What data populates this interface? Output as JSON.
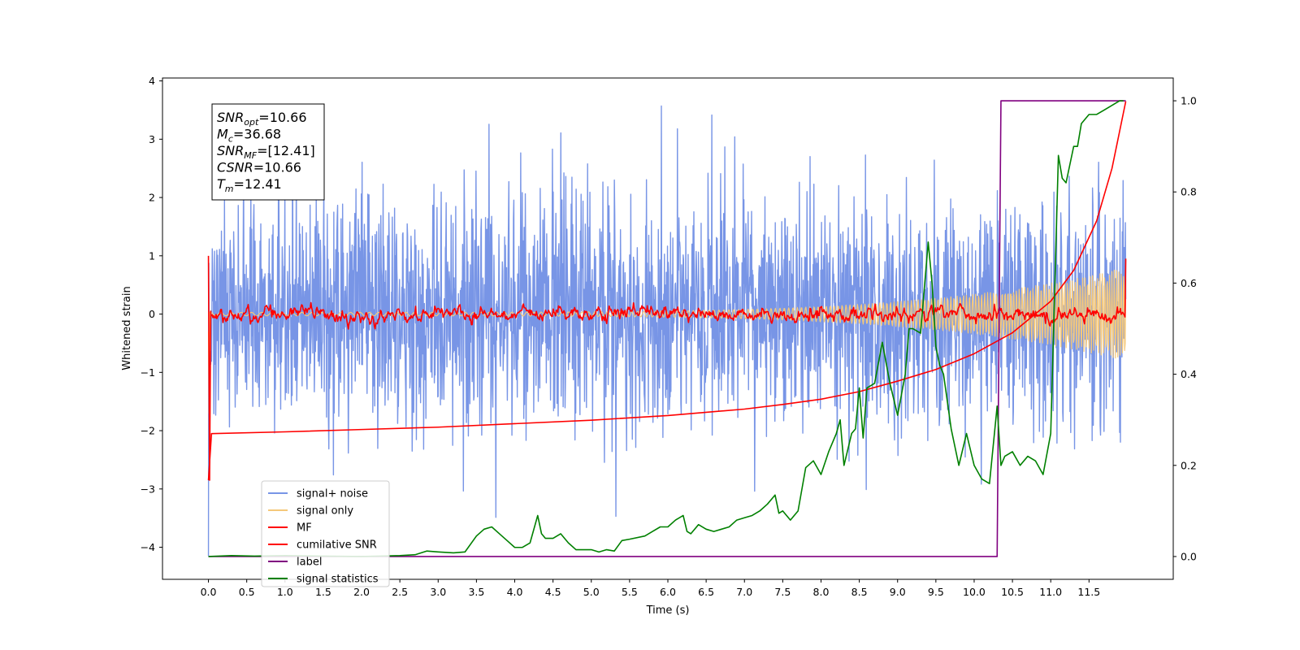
{
  "chart_data": {
    "type": "line",
    "xlabel": "Time (s)",
    "ylabel": "Whitened strain",
    "xlim": [
      -0.6,
      12.6
    ],
    "ylim": [
      -4.55,
      4.05
    ],
    "y2lim": [
      -0.05,
      1.05
    ],
    "x_ticks": [
      0.0,
      0.5,
      1.0,
      1.5,
      2.0,
      2.5,
      3.0,
      3.5,
      4.0,
      4.5,
      5.0,
      5.5,
      6.0,
      6.5,
      7.0,
      7.5,
      8.0,
      8.5,
      9.0,
      9.5,
      10.0,
      10.5,
      11.0,
      11.5
    ],
    "x_tick_labels": [
      "0.0",
      "0.5",
      "1.0",
      "1.5",
      "2.0",
      "2.5",
      "3.0",
      "3.5",
      "4.0",
      "4.5",
      "5.0",
      "5.5",
      "6.0",
      "6.5",
      "7.0",
      "7.5",
      "8.0",
      "8.5",
      "9.0",
      "9.5",
      "10.0",
      "10.5",
      "11.0",
      "11.5"
    ],
    "y_ticks": [
      -4,
      -3,
      -2,
      -1,
      0,
      1,
      2,
      3,
      4
    ],
    "y_tick_labels": [
      "−4",
      "−3",
      "−2",
      "−1",
      "0",
      "1",
      "2",
      "3",
      "4"
    ],
    "y2_ticks": [
      0.0,
      0.2,
      0.4,
      0.6,
      0.8,
      1.0
    ],
    "y2_tick_labels": [
      "0.0",
      "0.2",
      "0.4",
      "0.6",
      "0.8",
      "1.0"
    ],
    "legend_position": "lower-left",
    "grid": false,
    "annotation": {
      "lines": [
        {
          "sym": "SNR",
          "sub": "opt",
          "rest": "=10.66"
        },
        {
          "sym": "M",
          "sub": "c",
          "rest": "=36.68"
        },
        {
          "sym": "SNR",
          "sub": "MF",
          "rest": "=[12.41]"
        },
        {
          "sym": "CSNR",
          "sub": "",
          "rest": "=10.66"
        },
        {
          "sym": "T",
          "sub": "m",
          "rest": "=12.41"
        }
      ]
    },
    "series": [
      {
        "name": "signal+ noise",
        "color": "#7895e6",
        "axis": "left",
        "kind": "noise",
        "x_start": 0.0,
        "x_end": 11.98,
        "sigma": 1.0,
        "peak_max": 3.65,
        "peak_min": -4.15
      },
      {
        "name": "signal only",
        "color": "#f5c87a",
        "axis": "left",
        "kind": "chirp",
        "x_start": 0.0,
        "x_end": 11.98,
        "amplitude_start": 0.03,
        "amplitude_end": 0.8,
        "start_value": -0.3,
        "start_dip": -1.7
      },
      {
        "name": "MF",
        "color": "#ff0000",
        "axis": "left",
        "kind": "jitter",
        "x_start": 0.0,
        "x_end": 11.98,
        "start_values": [
          1.0,
          -2.85,
          0.05
        ],
        "sigma": 0.05,
        "end_values": [
          -0.05,
          0.95
        ]
      },
      {
        "name": "cumilative SNR",
        "color": "#ff0000",
        "axis": "left",
        "kind": "curve",
        "x": [
          0.0,
          0.04,
          1.0,
          2.0,
          3.0,
          4.0,
          5.0,
          6.0,
          7.0,
          7.5,
          8.0,
          8.5,
          9.0,
          9.5,
          10.0,
          10.5,
          11.0,
          11.3,
          11.6,
          11.8,
          11.98
        ],
        "y": [
          -2.85,
          -2.05,
          -2.02,
          -1.98,
          -1.94,
          -1.88,
          -1.82,
          -1.74,
          -1.63,
          -1.55,
          -1.46,
          -1.33,
          -1.15,
          -0.95,
          -0.68,
          -0.32,
          0.22,
          0.75,
          1.6,
          2.5,
          3.65
        ]
      },
      {
        "name": "label",
        "color": "#800080",
        "axis": "right",
        "kind": "steps",
        "x": [
          0.0,
          10.3,
          10.35,
          11.98
        ],
        "y": [
          0.0,
          0.0,
          1.0,
          1.0
        ]
      },
      {
        "name": "signal statistics",
        "color": "#008000",
        "axis": "right",
        "kind": "curve",
        "x": [
          0.0,
          0.3,
          0.6,
          1.0,
          1.5,
          2.0,
          2.5,
          2.7,
          2.85,
          3.0,
          3.2,
          3.35,
          3.5,
          3.6,
          3.7,
          3.8,
          3.9,
          4.0,
          4.1,
          4.2,
          4.3,
          4.35,
          4.4,
          4.5,
          4.6,
          4.7,
          4.8,
          4.9,
          5.0,
          5.1,
          5.2,
          5.3,
          5.4,
          5.5,
          5.7,
          5.8,
          5.9,
          6.0,
          6.1,
          6.2,
          6.25,
          6.3,
          6.4,
          6.5,
          6.6,
          6.7,
          6.8,
          6.9,
          7.0,
          7.1,
          7.2,
          7.3,
          7.4,
          7.45,
          7.5,
          7.6,
          7.7,
          7.8,
          7.9,
          8.0,
          8.1,
          8.2,
          8.25,
          8.3,
          8.4,
          8.45,
          8.5,
          8.55,
          8.6,
          8.7,
          8.8,
          8.9,
          9.0,
          9.1,
          9.15,
          9.2,
          9.3,
          9.4,
          9.45,
          9.5,
          9.55,
          9.6,
          9.7,
          9.8,
          9.9,
          10.0,
          10.1,
          10.2,
          10.3,
          10.35,
          10.4,
          10.5,
          10.6,
          10.7,
          10.8,
          10.9,
          11.0,
          11.1,
          11.15,
          11.2,
          11.3,
          11.35,
          11.4,
          11.5,
          11.6,
          11.7,
          11.8,
          11.9,
          11.95
        ],
        "y": [
          0.0,
          0.002,
          0.001,
          0.002,
          0.001,
          0.0,
          0.002,
          0.004,
          0.012,
          0.01,
          0.008,
          0.01,
          0.045,
          0.06,
          0.065,
          0.05,
          0.035,
          0.02,
          0.02,
          0.03,
          0.09,
          0.05,
          0.04,
          0.04,
          0.05,
          0.03,
          0.015,
          0.015,
          0.015,
          0.01,
          0.015,
          0.012,
          0.035,
          0.038,
          0.045,
          0.055,
          0.065,
          0.065,
          0.08,
          0.09,
          0.055,
          0.05,
          0.07,
          0.06,
          0.055,
          0.06,
          0.065,
          0.08,
          0.085,
          0.09,
          0.1,
          0.115,
          0.135,
          0.095,
          0.1,
          0.08,
          0.1,
          0.195,
          0.21,
          0.18,
          0.23,
          0.27,
          0.3,
          0.2,
          0.27,
          0.28,
          0.37,
          0.26,
          0.37,
          0.38,
          0.47,
          0.38,
          0.31,
          0.4,
          0.5,
          0.5,
          0.49,
          0.69,
          0.6,
          0.46,
          0.42,
          0.4,
          0.28,
          0.2,
          0.27,
          0.2,
          0.17,
          0.16,
          0.33,
          0.2,
          0.22,
          0.23,
          0.2,
          0.22,
          0.21,
          0.18,
          0.27,
          0.88,
          0.83,
          0.82,
          0.9,
          0.9,
          0.95,
          0.97,
          0.97,
          0.98,
          0.99,
          1.0,
          1.0
        ]
      }
    ]
  }
}
